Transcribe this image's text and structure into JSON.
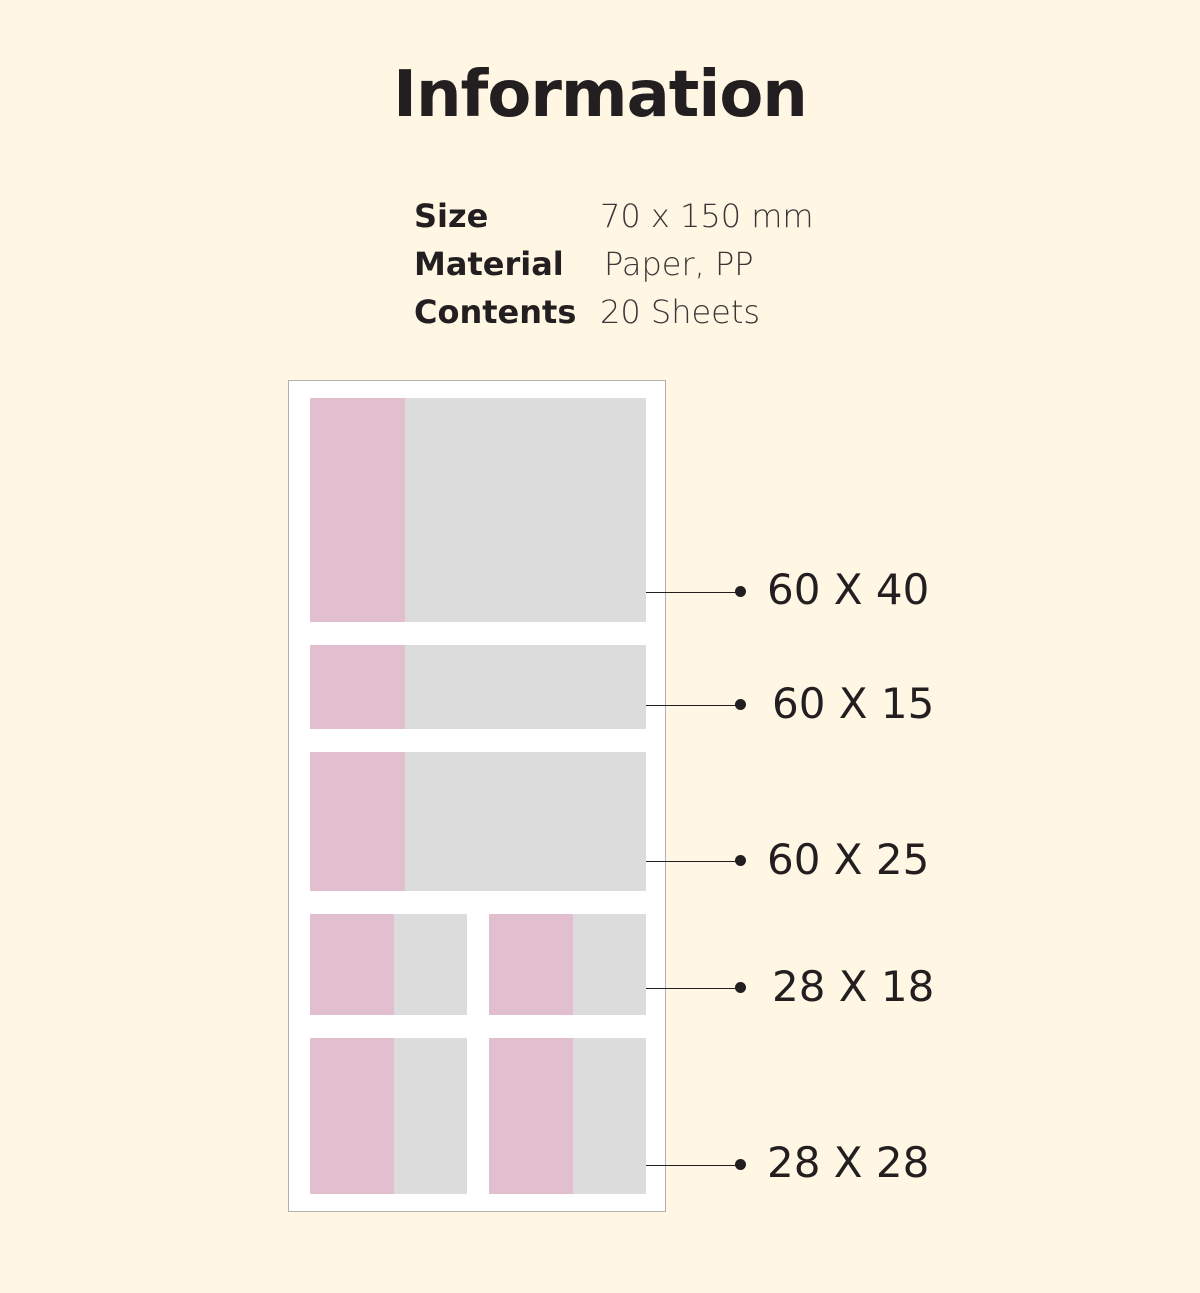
{
  "title": "Information",
  "specs": [
    {
      "key": "Size",
      "value": "70 x 150 mm"
    },
    {
      "key": "Material",
      "value": "Paper, PP"
    },
    {
      "key": "Contents",
      "value": "20 Sheets"
    }
  ],
  "colors": {
    "background": "#fff7e4",
    "tab": "#e1bfcf",
    "note": "#dcdcdc"
  },
  "dimensions": [
    "60 X 40",
    "60 X 15",
    "60 X 25",
    "28 X 18",
    "28 X 28"
  ]
}
